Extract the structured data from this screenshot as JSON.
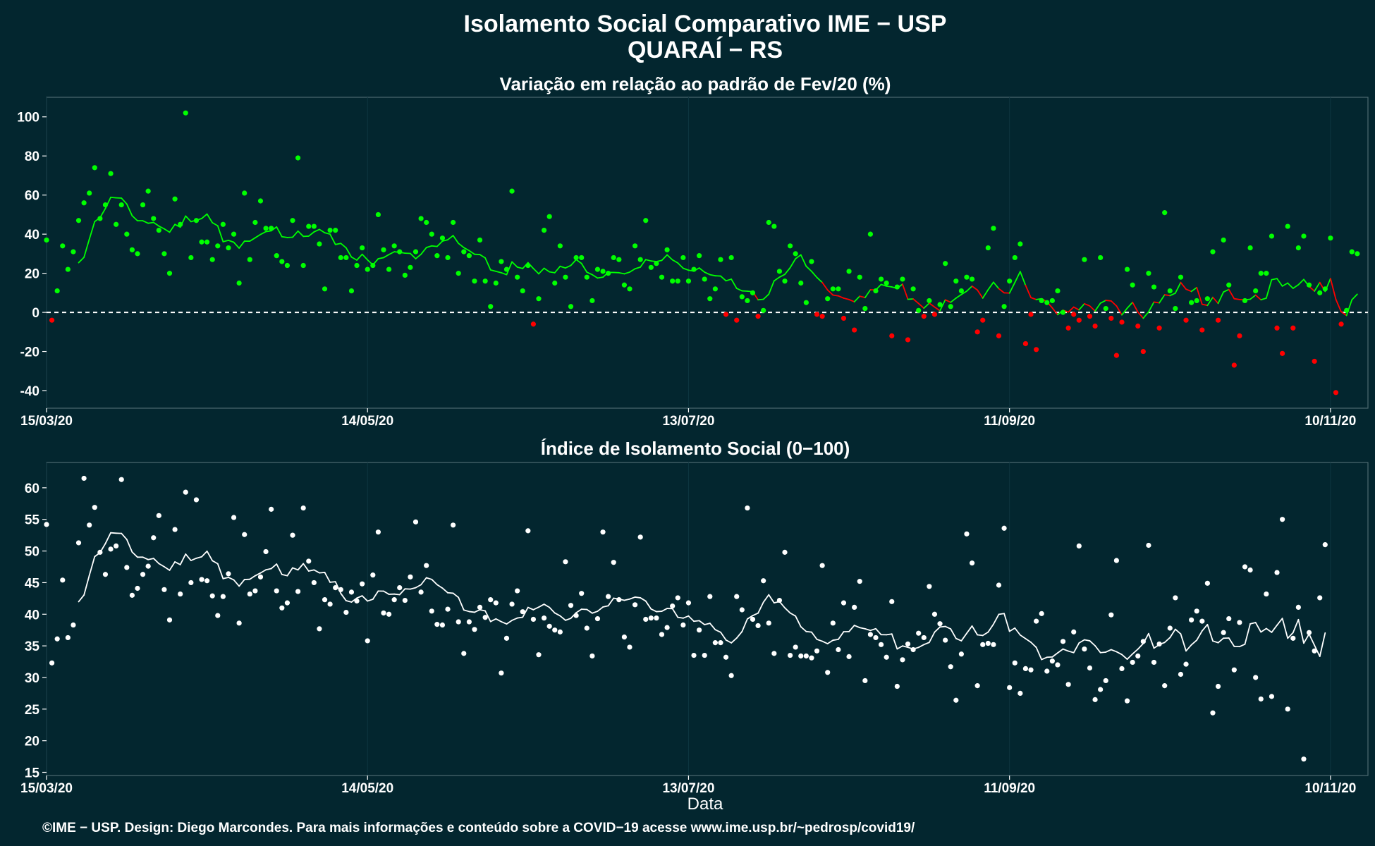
{
  "title": "Isolamento Social Comparativo IME − USP",
  "subtitle": "QUARAÍ − RS",
  "caption": "©IME − USP. Design: Diego Marcondes. Para mais informações e conteúdo sobre a COVID−19 acesse www.ime.usp.br/~pedrosp/covid19/",
  "colors": {
    "background": "#03262f",
    "positive": "#00ff00",
    "negative": "#ff0000",
    "index": "#ffffff",
    "frame": "#4d6a70"
  },
  "chart_data": [
    {
      "type": "scatter",
      "title": "Variação em relação ao padrão de Fev/20 (%)",
      "xlabel": "",
      "ylabel": "",
      "x_range": [
        "2020-03-15",
        "2020-11-17"
      ],
      "x_ticks": [
        "15/03/20",
        "14/05/20",
        "13/07/20",
        "11/09/20",
        "10/11/20"
      ],
      "ylim": [
        -49,
        110
      ],
      "y_ticks": [
        -40,
        -20,
        0,
        20,
        40,
        60,
        80,
        100
      ],
      "reference_line": 0,
      "grid": false,
      "series": [
        {
          "values": [
            37,
            -4,
            11,
            34,
            22,
            31,
            47,
            56,
            61,
            74,
            48,
            55,
            71,
            45,
            55,
            40,
            32,
            30,
            55,
            62,
            48,
            42,
            30,
            20,
            58,
            45,
            102,
            28,
            47,
            36,
            36,
            27,
            34,
            45,
            33,
            40,
            15,
            61,
            27,
            46,
            57,
            43,
            43,
            29,
            26,
            24,
            47,
            79,
            24,
            44,
            44,
            35,
            12,
            42,
            42,
            28,
            28,
            11,
            24,
            33,
            22,
            24,
            50,
            32,
            22,
            34,
            31,
            19,
            23,
            31,
            48,
            46,
            40,
            29,
            38,
            28,
            46,
            20,
            31,
            29,
            16,
            37,
            16,
            3,
            15,
            26,
            22,
            62,
            18,
            11,
            24,
            -6,
            7,
            42,
            49,
            15,
            34,
            18,
            3,
            28,
            28,
            18,
            6,
            22,
            21,
            20,
            28,
            27,
            14,
            12,
            34,
            27,
            47,
            23,
            25,
            18,
            32,
            16,
            16,
            28,
            16,
            22,
            29,
            17,
            7,
            12,
            27,
            -1,
            28,
            -4,
            8,
            6,
            10,
            -2,
            1,
            46,
            44,
            21,
            16,
            34,
            30,
            15,
            5,
            26,
            -1,
            -2,
            7,
            12,
            12,
            -3,
            21,
            -9,
            18,
            2,
            40,
            11,
            17,
            15,
            -12,
            13,
            17,
            -14,
            12,
            1,
            -2,
            6,
            -1,
            4,
            25,
            3,
            16,
            11,
            18,
            17,
            -10,
            -4,
            33,
            43,
            -12,
            3,
            16,
            28,
            35,
            -16,
            -1,
            -19,
            6,
            5,
            6,
            11,
            0,
            -8,
            -1,
            -4,
            27,
            -2,
            -7,
            28,
            2,
            -3,
            -22,
            -5,
            22,
            14,
            -7,
            -20,
            20,
            13,
            -8,
            51,
            11,
            2,
            18,
            -4,
            5,
            6,
            -9,
            7,
            31,
            -4,
            37,
            14,
            -27,
            -12,
            6,
            33,
            11,
            20,
            20,
            39,
            -8,
            -21,
            44,
            -8,
            33,
            39,
            14,
            -25,
            10,
            12,
            38,
            -41,
            -6,
            1,
            31,
            30
          ]
        }
      ]
    },
    {
      "type": "scatter",
      "title": "Índice de Isolamento Social (0−100)",
      "xlabel": "Data",
      "ylabel": "",
      "x_range": [
        "2020-03-15",
        "2020-11-17"
      ],
      "x_ticks": [
        "15/03/20",
        "14/05/20",
        "13/07/20",
        "11/09/20",
        "10/11/20"
      ],
      "ylim": [
        14.5,
        64
      ],
      "y_ticks": [
        15,
        20,
        25,
        30,
        35,
        40,
        45,
        50,
        55,
        60
      ],
      "grid": false,
      "series": [
        {
          "values": [
            54.2,
            32.3,
            36.1,
            45.4,
            36.3,
            38.3,
            51.3,
            61.5,
            54.1,
            56.9,
            49.8,
            46.3,
            50.3,
            50.8,
            61.3,
            47.4,
            43,
            44.1,
            46.3,
            47.6,
            52.1,
            55.6,
            43.9,
            39.1,
            53.4,
            43.2,
            59.3,
            45,
            58.1,
            45.5,
            45.3,
            42.9,
            39.8,
            42.8,
            46.4,
            55.3,
            38.6,
            52.6,
            43.2,
            43.7,
            45.9,
            49.9,
            56.6,
            43.7,
            41,
            41.8,
            52.5,
            43.6,
            56.8,
            48.4,
            45,
            37.7,
            42.3,
            41.6,
            44.2,
            43.9,
            40.3,
            43.5,
            42.1,
            44.8,
            35.8,
            46.2,
            53,
            40.2,
            40,
            42.3,
            44.2,
            42.2,
            45.9,
            54.6,
            43.5,
            47.7,
            40.5,
            38.4,
            38.3,
            40.8,
            54.1,
            38.8,
            33.8,
            38.8,
            37.6,
            41.1,
            39.5,
            42.3,
            41.8,
            30.7,
            36.2,
            41.6,
            43.7,
            40.4,
            53.2,
            39.2,
            33.6,
            39.4,
            38.1,
            37.5,
            37.2,
            48.3,
            41.4,
            39.8,
            43.3,
            37.8,
            33.4,
            39.3,
            53,
            42.8,
            48.2,
            42.3,
            36.4,
            34.8,
            41.5,
            52.2,
            39.2,
            39.4,
            39.4,
            36.8,
            37.9,
            41.3,
            42.6,
            38.3,
            41.8,
            33.5,
            37.5,
            33.5,
            42.8,
            35.5,
            35.5,
            33.2,
            30.3,
            42.8,
            40.7,
            56.8,
            39.2,
            38.2,
            45.3,
            38.6,
            33.8,
            42.2,
            49.8,
            33.5,
            34.8,
            33.4,
            33.4,
            33.1,
            34.2,
            47.7,
            30.8,
            38.6,
            34.4,
            41.8,
            33.3,
            41.1,
            45.2,
            29.5,
            36.8,
            36.3,
            35.2,
            33.2,
            42,
            28.6,
            32.8,
            35.3,
            34.4,
            37,
            36.3,
            44.4,
            40,
            38.5,
            35.9,
            31.7,
            26.4,
            33.7,
            52.7,
            48.1,
            28.7,
            35.2,
            35.4,
            35.2,
            44.6,
            53.6,
            28.4,
            32.3,
            27.5,
            31.4,
            31.2,
            38.9,
            40.1,
            31,
            32.6,
            32,
            35.7,
            28.9,
            37.2,
            50.8,
            34.5,
            31.5,
            26.5,
            28.1,
            29.5,
            39.9,
            48.5,
            31.4,
            26.3,
            32.4,
            33.4,
            35.7,
            50.9,
            32.4,
            35.3,
            28.7,
            37.8,
            42.6,
            30.5,
            32.1,
            39.1,
            40.5,
            38.9,
            44.9,
            24.4,
            28.6,
            37.1,
            39.3,
            31.2,
            38.7,
            47.5,
            47,
            30,
            26.6,
            43.2,
            27,
            46.6,
            55,
            25,
            36.2,
            41.1,
            17.1,
            37.1,
            34.2,
            42.6,
            51
          ]
        }
      ]
    }
  ]
}
